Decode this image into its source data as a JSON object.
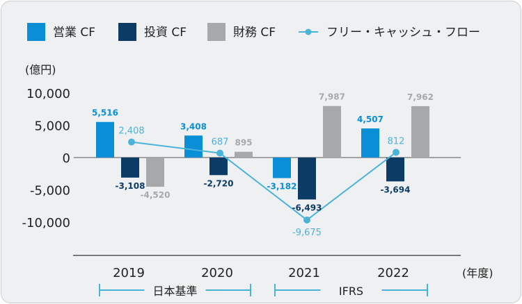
{
  "chart_data": {
    "type": "bar",
    "categories": [
      "2019",
      "2020",
      "2021",
      "2022"
    ],
    "series": [
      {
        "name": "営業 CF",
        "type": "bar",
        "color": "#0a8fd6",
        "values": [
          5516,
          3408,
          -3182,
          4507
        ],
        "labels": [
          "5,516",
          "3,408",
          "-3,182",
          "4,507"
        ]
      },
      {
        "name": "投資 CF",
        "type": "bar",
        "color": "#0c3c66",
        "values": [
          -3108,
          -2720,
          -6493,
          -3694
        ],
        "labels": [
          "-3,108",
          "-2,720",
          "-6,493",
          "-3,694"
        ]
      },
      {
        "name": "財務 CF",
        "type": "bar",
        "color": "#a6a8aa",
        "values": [
          -4520,
          895,
          7987,
          7962
        ],
        "labels": [
          "-4,520",
          "895",
          "7,987",
          "7,962"
        ]
      },
      {
        "name": "フリー・キャッシュ・フロー",
        "type": "line",
        "color": "#4bb3d8",
        "values": [
          2408,
          687,
          -9675,
          812
        ],
        "labels": [
          "2,408",
          "687",
          "-9,675",
          "812"
        ]
      }
    ],
    "ylabel": "(億円)",
    "xlabel": "(年度)",
    "yticks": [
      10000,
      5000,
      0,
      -5000,
      -10000
    ],
    "ytick_labels": [
      "10,000",
      "5,000",
      "0",
      "-5,000",
      "-10,000"
    ],
    "ylim": [
      -15000,
      10000
    ],
    "periods": [
      {
        "label": "日本基準",
        "categories": [
          "2019",
          "2020"
        ]
      },
      {
        "label": "IFRS",
        "categories": [
          "2021",
          "2022"
        ]
      }
    ],
    "legend_position": "top"
  }
}
